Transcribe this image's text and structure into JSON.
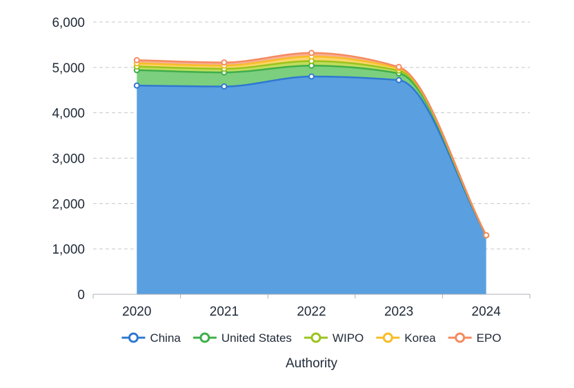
{
  "chart_data": {
    "type": "area",
    "stacked": true,
    "title": "",
    "xlabel": "Authority",
    "ylabel": "",
    "categories": [
      "2020",
      "2021",
      "2022",
      "2023",
      "2024"
    ],
    "ylim": [
      0,
      6000
    ],
    "yticks": [
      0,
      1000,
      2000,
      3000,
      4000,
      5000,
      6000
    ],
    "ytick_labels": [
      "0",
      "1,000",
      "2,000",
      "3,000",
      "4,000",
      "5,000",
      "6,000"
    ],
    "grid": true,
    "legend_position": "bottom",
    "series": [
      {
        "name": "China",
        "values": [
          4600,
          4580,
          4800,
          4720,
          1300
        ],
        "color": "#2f78d0",
        "fill": "#5a9fe0"
      },
      {
        "name": "United States",
        "values": [
          340,
          310,
          240,
          150,
          0
        ],
        "color": "#3fae49",
        "fill": "#7ccf7f"
      },
      {
        "name": "WIPO",
        "values": [
          80,
          80,
          100,
          60,
          0
        ],
        "color": "#9ac31c",
        "fill": "#bfdd5c"
      },
      {
        "name": "Korea",
        "values": [
          70,
          70,
          100,
          50,
          0
        ],
        "color": "#f7bd26",
        "fill": "#fbd56a"
      },
      {
        "name": "EPO",
        "values": [
          70,
          70,
          80,
          30,
          0
        ],
        "color": "#f48a60",
        "fill": "#f8b092"
      }
    ]
  }
}
